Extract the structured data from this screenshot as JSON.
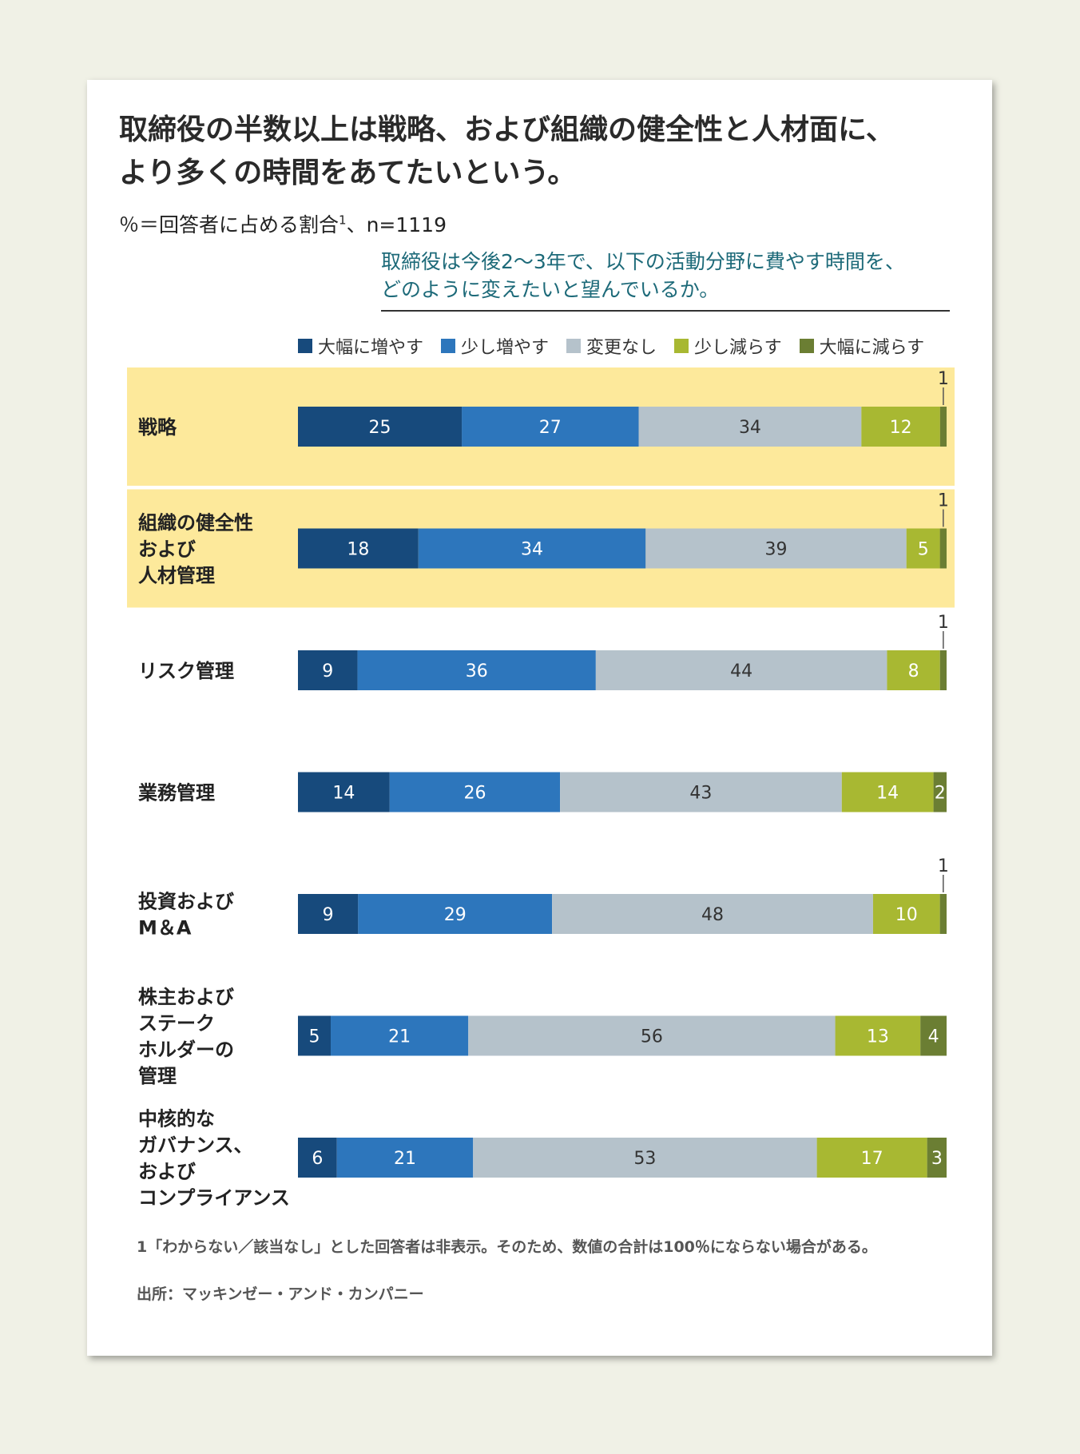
{
  "title": "取締役の半数以上は戦略、および組織の健全性と人材面に、\nより多くの時間をあてたいという。",
  "subtitle": {
    "text": "％＝回答者に占める割合",
    "sup": "1",
    "rest": "、n=1119"
  },
  "question": "取締役は今後2～3年で、以下の活動分野に費やす時間を、\nどのように変えたいと望んでいるか。",
  "colors": {
    "highlight": "#fde99b",
    "s1": "#174a7c",
    "s2": "#2d76bc",
    "s3": "#b5c2cb",
    "s4": "#a8b832",
    "s5": "#6b7e33"
  },
  "chart_data": {
    "type": "bar",
    "orientation": "horizontal",
    "stacked": true,
    "legend_position": "top-right",
    "series": [
      {
        "name": "大幅に増やす",
        "values": [
          25,
          18,
          9,
          14,
          9,
          5,
          6
        ]
      },
      {
        "name": "少し増やす",
        "values": [
          27,
          34,
          36,
          26,
          29,
          21,
          21
        ]
      },
      {
        "name": "変更なし",
        "values": [
          34,
          39,
          44,
          43,
          48,
          56,
          53
        ]
      },
      {
        "name": "少し減らす",
        "values": [
          12,
          5,
          8,
          14,
          10,
          13,
          17
        ]
      },
      {
        "name": "大幅に減らす",
        "values": [
          1,
          1,
          1,
          2,
          1,
          4,
          3
        ]
      }
    ],
    "categories": [
      "戦略",
      "組織の健全性\nおよび\n人材管理",
      "リスク管理",
      "業務管理",
      "投資および\nM＆A",
      "株主および\nステーク\nホルダーの\n管理",
      "中核的な\nガバナンス、\nおよび\nコンプライアンス"
    ],
    "highlighted_rows": [
      0,
      1
    ]
  },
  "footnote": "1「わからない／該当なし」とした回答者は非表示。そのため、数値の合計は100％にならない場合がある。",
  "source": "出所：マッキンゼー・アンド・カンパニー"
}
